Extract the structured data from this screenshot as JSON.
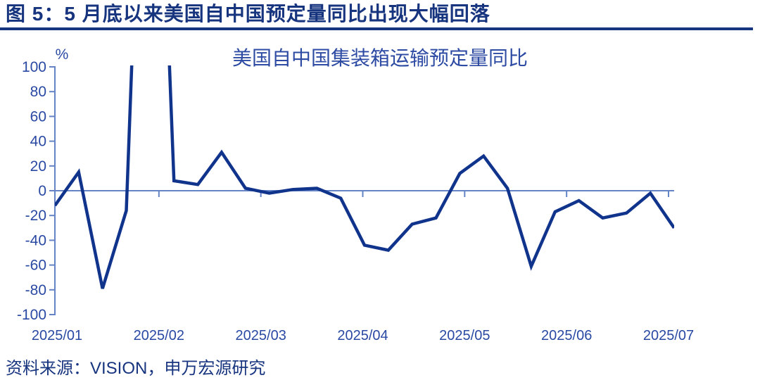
{
  "header": {
    "title": "图 5：5 月底以来美国自中国预定量同比出现大幅回落"
  },
  "chart": {
    "title": "美国自中国集装箱运输预定量同比",
    "unit_label": "%"
  },
  "footer": {
    "source": "资料来源：VISION，申万宏源研究"
  },
  "colors": {
    "heading_navy": "#17347F",
    "series_line": "#10338C",
    "axis_line": "#6484C6",
    "tick_label_blue": "#2A49A3",
    "chart_title_blue": "#2E4BA4",
    "background": "#ffffff"
  },
  "chart_data": {
    "type": "line",
    "title": "美国自中国集装箱运输预定量同比",
    "xlabel": "",
    "ylabel": "%",
    "ylim": [
      -100,
      100
    ],
    "ytick_step": 20,
    "ytick_labels": [
      "100",
      "80",
      "60",
      "40",
      "20",
      "0",
      "-20",
      "-40",
      "-60",
      "-80",
      "-100"
    ],
    "x_tick_labels": [
      "2025/01",
      "2025/02",
      "2025/03",
      "2025/04",
      "2025/05",
      "2025/06",
      "2025/07"
    ],
    "frequency": "weekly",
    "grid": false,
    "legend": "none",
    "series": [
      {
        "name": "美国自中国集装箱运输预定量同比",
        "values": [
          -12,
          15,
          -79,
          -16,
          500,
          8,
          5,
          31,
          2,
          -2,
          1,
          2,
          -6,
          -44,
          -48,
          -27,
          -22,
          14,
          28,
          2,
          -61,
          -17,
          -8,
          -22,
          -18,
          -2,
          -30
        ]
      }
    ],
    "clip_note": "第5个周度数据点远高于上限100，图中在坐标区顶部被截断显示"
  }
}
